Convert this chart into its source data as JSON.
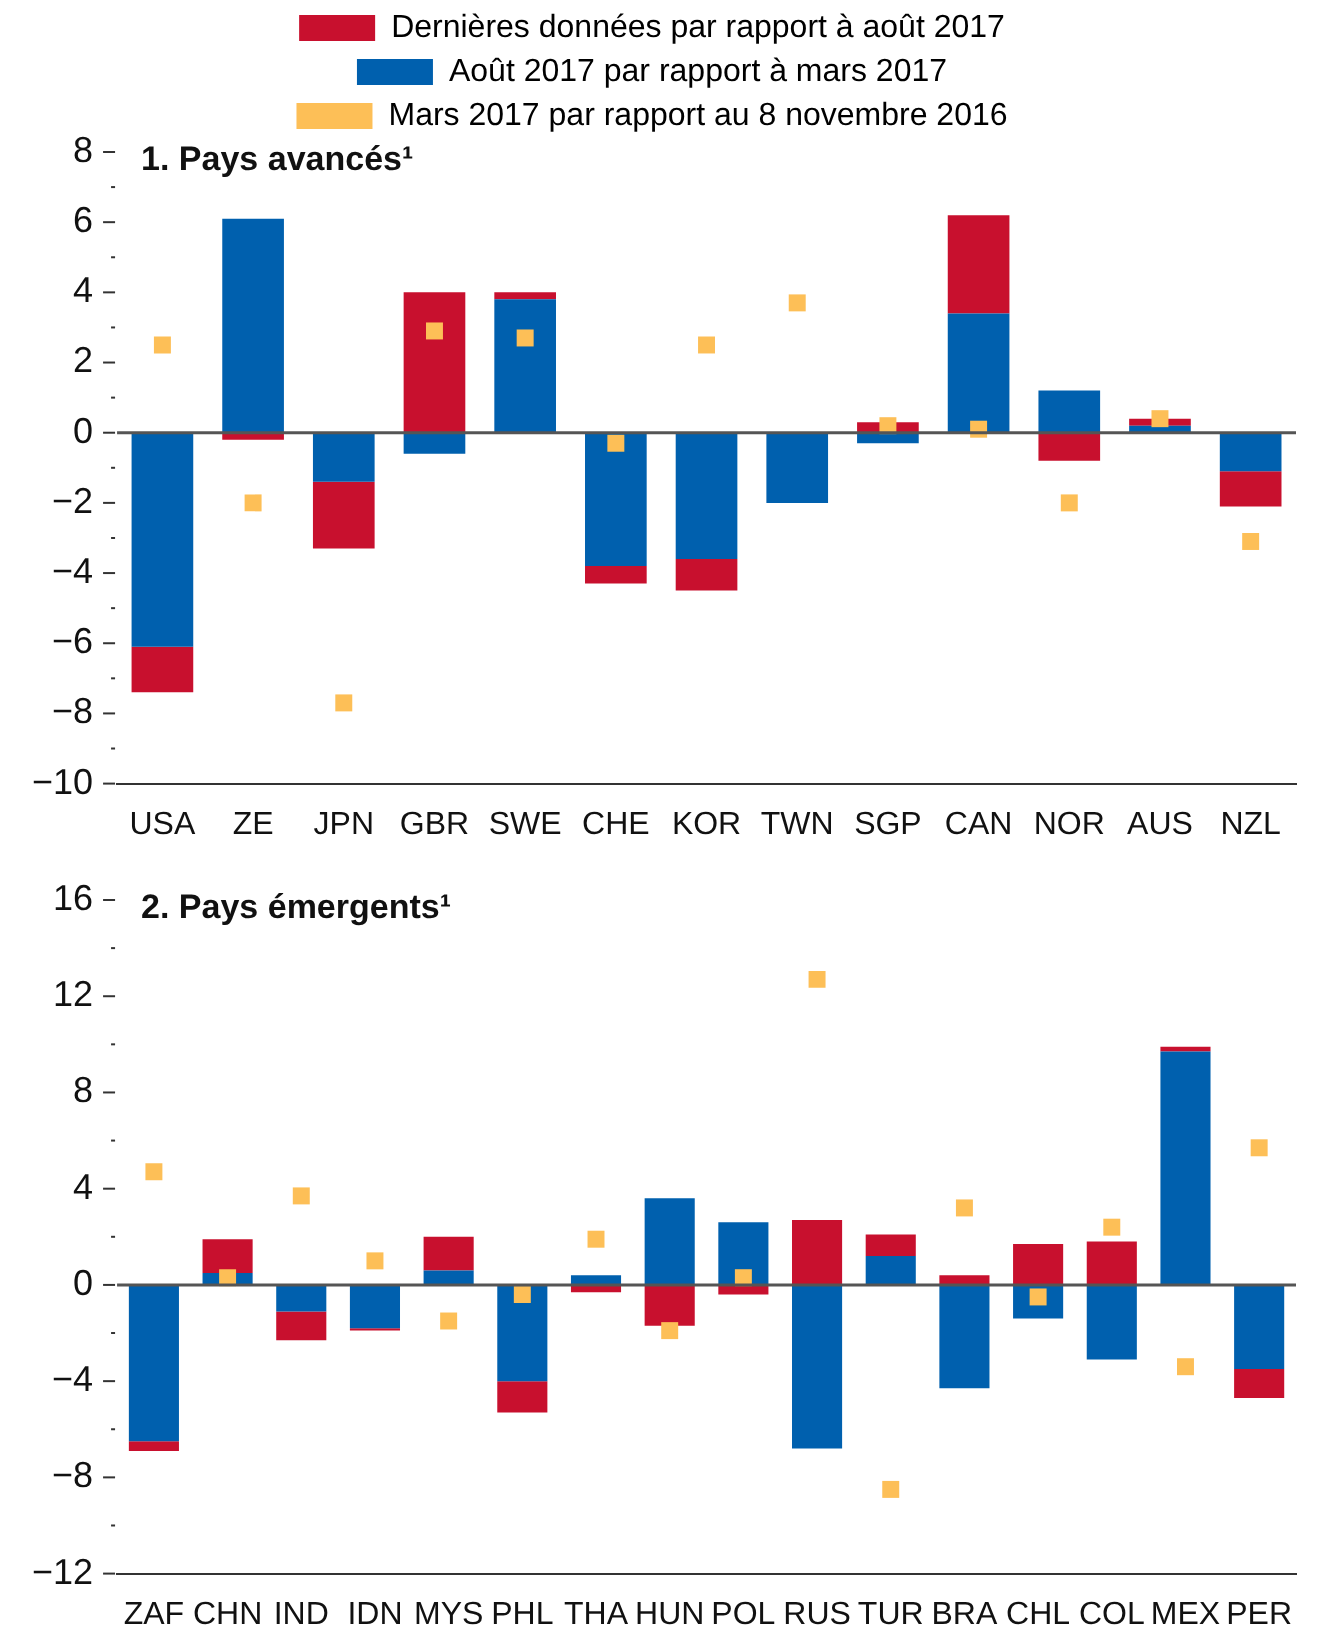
{
  "chart_data": [
    {
      "type": "bar",
      "title": "1. Pays avancés¹",
      "stacked": true,
      "ref_lines": [
        {
          "axis": "y",
          "value": 0,
          "color": "#555555"
        }
      ],
      "legend": "top",
      "grid": false,
      "marker": "square",
      "categories": [
        "USA",
        "ZE",
        "JPN",
        "GBR",
        "SWE",
        "CHE",
        "KOR",
        "TWN",
        "SGP",
        "CAN",
        "NOR",
        "AUS",
        "NZL"
      ],
      "ylim": [
        -10,
        8
      ],
      "yticks": [
        -10,
        {
          "value": -9,
          "label": null
        },
        -8,
        {
          "value": -7,
          "label": null
        },
        -6,
        {
          "value": -5,
          "label": null
        },
        -4,
        {
          "value": -3,
          "label": null
        },
        -2,
        {
          "value": -1,
          "label": null
        },
        0,
        {
          "value": 1,
          "label": null
        },
        2,
        {
          "value": 3,
          "label": null
        },
        4,
        {
          "value": 5,
          "label": null
        },
        6,
        {
          "value": 7,
          "label": null
        },
        8
      ],
      "series": [
        {
          "name": "Août 2017 par rapport à mars 2017",
          "color": "#0060ae",
          "values": [
            -6.1,
            6.1,
            -1.4,
            -0.6,
            3.8,
            -3.8,
            -3.6,
            -2.0,
            -0.3,
            3.4,
            1.2,
            0.2,
            -1.1
          ]
        },
        {
          "name": "Dernières données par rapport à août 2017",
          "color": "#c8102e",
          "values": [
            -1.3,
            -0.2,
            -1.9,
            4.0,
            0.2,
            -0.5,
            -0.9,
            null,
            0.3,
            2.8,
            -0.8,
            0.2,
            -1.0
          ]
        },
        {
          "name": "Mars 2017 par rapport au 8 novembre 2016",
          "type": "scatter",
          "color": "#fdbf57",
          "x": [
            "USA",
            "ZE",
            "JPN",
            "GBR",
            "SWE",
            "CHE",
            "KOR",
            "TWN",
            "SGP",
            "CAN",
            "NOR",
            "AUS",
            "NZL"
          ],
          "values": [
            2.5,
            -2.0,
            -7.7,
            2.9,
            2.7,
            -0.3,
            2.5,
            3.7,
            0.2,
            0.1,
            -2.0,
            0.4,
            -3.1
          ]
        }
      ]
    },
    {
      "type": "bar",
      "title": "2. Pays émergents¹",
      "stacked": true,
      "ref_lines": [
        {
          "axis": "y",
          "value": 0,
          "color": "#555555"
        }
      ],
      "grid": false,
      "marker": "square",
      "categories": [
        "ZAF",
        "CHN",
        "IND",
        "IDN",
        "MYS",
        "PHL",
        "THA",
        "HUN",
        "POL",
        "RUS",
        "TUR",
        "BRA",
        "CHL",
        "COL",
        "MEX",
        "PER"
      ],
      "ylim": [
        -12,
        16
      ],
      "yticks": [
        -12,
        {
          "value": -10,
          "label": null
        },
        -8,
        {
          "value": -6,
          "label": null
        },
        -4,
        {
          "value": -2,
          "label": null
        },
        0,
        {
          "value": 2,
          "label": null
        },
        4,
        {
          "value": 6,
          "label": null
        },
        8,
        {
          "value": 10,
          "label": null
        },
        12,
        {
          "value": 14,
          "label": null
        },
        16
      ],
      "series": [
        {
          "color": "#0060ae",
          "values": [
            -6.5,
            0.5,
            -1.1,
            -1.8,
            0.6,
            -4.0,
            0.4,
            3.6,
            2.6,
            -6.8,
            1.2,
            -4.3,
            -1.4,
            -3.1,
            9.7,
            -3.5
          ]
        },
        {
          "color": "#c8102e",
          "values": [
            -0.4,
            1.4,
            -1.2,
            -0.1,
            1.4,
            -1.3,
            -0.3,
            -1.7,
            -0.4,
            2.7,
            0.9,
            0.4,
            1.7,
            1.8,
            0.2,
            -1.2
          ]
        },
        {
          "type": "scatter",
          "color": "#fdbf57",
          "x": [
            "ZAF",
            "CHN",
            "IND",
            "IDN",
            "MYS",
            "PHL",
            "THA",
            "HUN",
            "POL",
            "RUS",
            "TUR",
            "BRA",
            "CHL",
            "COL",
            "MEX",
            "PER"
          ],
          "values": [
            4.7,
            0.3,
            3.7,
            1.0,
            -1.5,
            -0.4,
            1.9,
            -1.9,
            0.3,
            12.7,
            -8.5,
            3.2,
            -0.5,
            2.4,
            -3.4,
            5.7
          ]
        }
      ]
    }
  ]
}
